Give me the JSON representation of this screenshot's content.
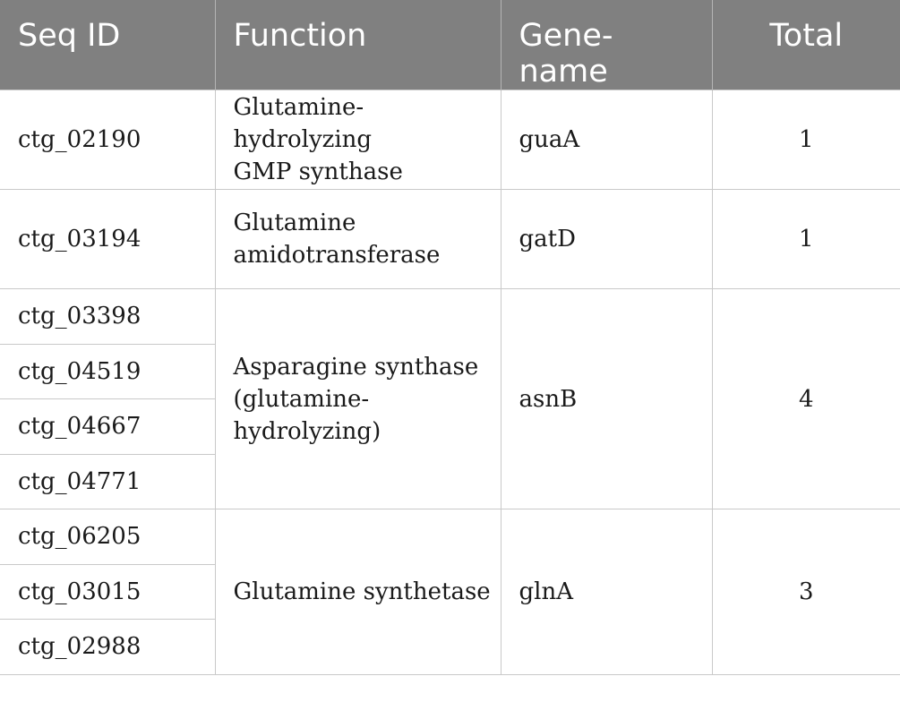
{
  "headers": {
    "seq_id": "Seq ID",
    "function_line1": "Function",
    "gene_line1": "Gene-",
    "gene_line2": "name",
    "total": "Total"
  },
  "rows": [
    {
      "seq": "ctg_02190",
      "function_l1": "Glutamine-hydrolyzing",
      "function_l2": "GMP synthase",
      "gene": "guaA",
      "total": "1"
    },
    {
      "seq": "ctg_03194",
      "function_l1": "Glutamine",
      "function_l2": "amidotransferase",
      "gene": "gatD",
      "total": "1"
    }
  ],
  "group_asnB": {
    "seqs": [
      "ctg_03398",
      "ctg_04519",
      "ctg_04667",
      "ctg_04771"
    ],
    "function_l1": "Asparagine synthase",
    "function_l2": "(glutamine-",
    "function_l3": "hydrolyzing)",
    "gene": "asnB",
    "total": "4"
  },
  "group_glnA": {
    "seqs": [
      "ctg_06205",
      "ctg_03015",
      "ctg_02988"
    ],
    "function": "Glutamine synthetase",
    "gene": "glnA",
    "total": "3"
  }
}
